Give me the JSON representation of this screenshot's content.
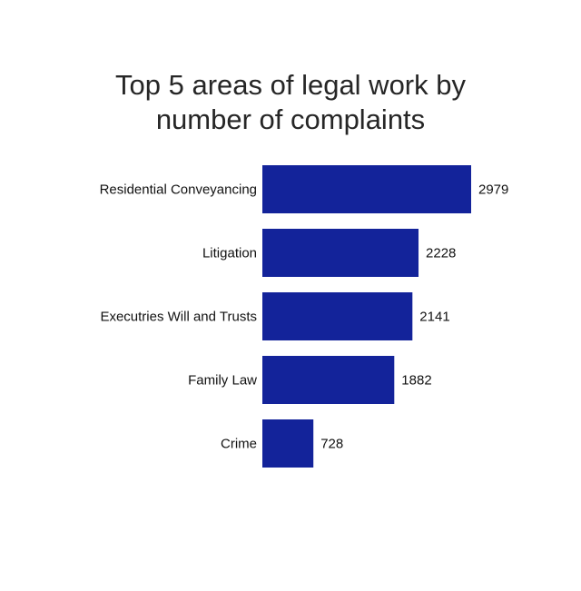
{
  "chart_data": {
    "type": "bar",
    "orientation": "horizontal",
    "title_lines": [
      "Top 5 areas of legal work by",
      "number of complaints"
    ],
    "categories": [
      "Residential Conveyancing",
      "Litigation",
      "Executries Will and Trusts",
      "Family Law",
      "Crime"
    ],
    "values": [
      2979,
      2228,
      2141,
      1882,
      728
    ],
    "value_labels": [
      "2979",
      "2228",
      "2141",
      "1882",
      "728"
    ],
    "bar_color": "#13239a",
    "xlim": [
      0,
      2979
    ],
    "grid": false,
    "legend": "none",
    "xlabel": "",
    "ylabel": ""
  }
}
